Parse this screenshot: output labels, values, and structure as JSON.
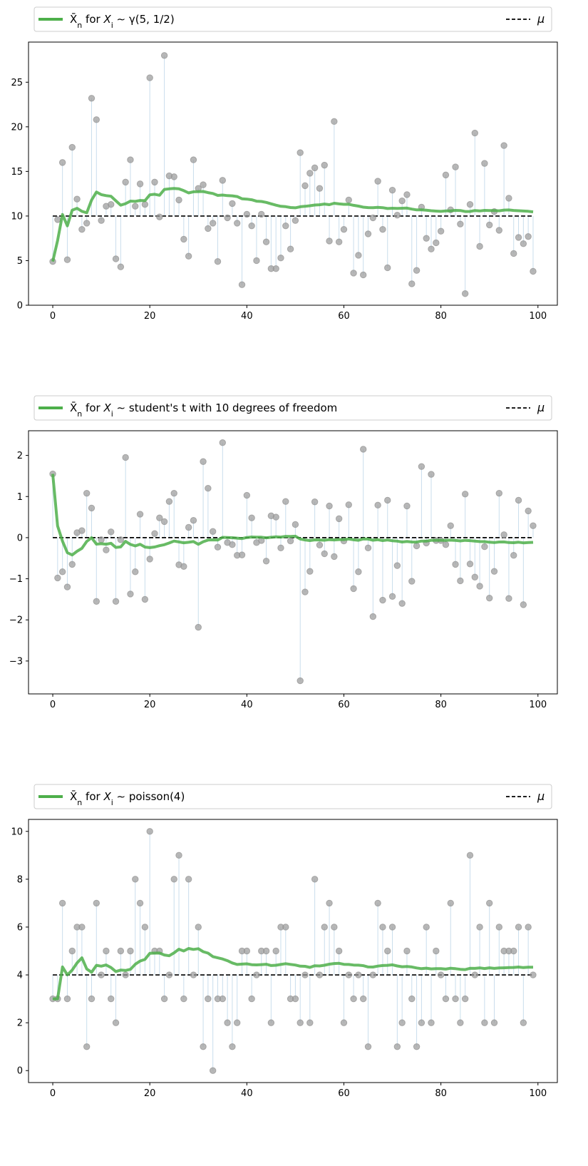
{
  "figure": {
    "legend_mu_label": "μ",
    "legend_prefix": "X̄",
    "legend_sub_n": "n",
    "legend_middle": " for ",
    "legend_xi": "X",
    "legend_sub_i": "i",
    "legend_tilde": " ∼ ",
    "colors": {
      "running_mean": "#4daf4a",
      "samples": "#999999",
      "stems": "#a6c8e0",
      "mu_line": "#000000"
    }
  },
  "chart_data": [
    {
      "type": "scatter",
      "distribution_label": "γ(5, 1/2)",
      "mu": 10,
      "xlim": [
        -5,
        104
      ],
      "ylim": [
        0,
        29.5
      ],
      "xticks": [
        0,
        20,
        40,
        60,
        80,
        100
      ],
      "yticks": [
        0,
        5,
        10,
        15,
        20,
        25
      ],
      "legend": {
        "series": "running mean",
        "reference": "μ",
        "placement": "top"
      },
      "samples": [
        4.9,
        9.6,
        16.0,
        5.1,
        17.7,
        11.9,
        8.5,
        9.2,
        23.2,
        20.8,
        9.5,
        11.1,
        11.3,
        5.2,
        4.3,
        13.8,
        16.3,
        11.1,
        13.6,
        11.3,
        25.5,
        13.8,
        9.9,
        28.0,
        14.5,
        14.4,
        11.8,
        7.4,
        5.5,
        16.3,
        13.1,
        13.5,
        8.6,
        9.2,
        4.9,
        14.0,
        9.8,
        11.4,
        9.2,
        2.3,
        10.2,
        8.9,
        5.0,
        10.2,
        7.1,
        4.1,
        4.1,
        5.3,
        8.9,
        6.3,
        9.5,
        17.1,
        13.4,
        14.8,
        15.4,
        13.1,
        15.7,
        7.2,
        20.6,
        7.1,
        8.5,
        11.8,
        3.6,
        5.6,
        3.4,
        8.0,
        9.8,
        13.9,
        8.5,
        4.2,
        12.9,
        10.1,
        11.7,
        12.4,
        2.4,
        3.9,
        11.0,
        7.5,
        6.3,
        7.0,
        8.3,
        14.6,
        10.7,
        15.5,
        9.1,
        1.3,
        11.3,
        19.3,
        6.6,
        15.9,
        9.0,
        10.5,
        8.4,
        17.9,
        12.0,
        5.8,
        7.6,
        6.9,
        7.7,
        3.8
      ]
    },
    {
      "type": "scatter",
      "distribution_label": "student's t with 10 degrees of freedom",
      "mu": 0,
      "xlim": [
        -5,
        104
      ],
      "ylim": [
        -3.8,
        2.6
      ],
      "xticks": [
        0,
        20,
        40,
        60,
        80,
        100
      ],
      "yticks": [
        -3,
        -2,
        -1,
        0,
        1,
        2
      ],
      "legend": {
        "series": "running mean",
        "reference": "μ",
        "placement": "top"
      },
      "samples": [
        1.55,
        -0.98,
        -0.83,
        -1.2,
        -0.65,
        0.12,
        0.17,
        1.08,
        0.72,
        -1.55,
        -0.05,
        -0.3,
        0.14,
        -1.55,
        -0.05,
        1.95,
        -1.37,
        -0.83,
        0.57,
        -1.5,
        -0.52,
        0.1,
        0.48,
        0.39,
        0.88,
        1.08,
        -0.66,
        -0.7,
        0.25,
        0.42,
        -2.18,
        1.85,
        1.2,
        0.15,
        -0.23,
        2.31,
        -0.12,
        -0.17,
        -0.43,
        -0.42,
        1.03,
        0.48,
        -0.12,
        -0.07,
        -0.57,
        0.53,
        0.5,
        -0.25,
        0.88,
        -0.08,
        0.32,
        -3.48,
        -1.32,
        -0.82,
        0.87,
        -0.18,
        -0.39,
        0.77,
        -0.46,
        0.46,
        -0.08,
        0.8,
        -1.24,
        -0.83,
        2.15,
        -0.25,
        -1.92,
        0.79,
        -1.52,
        0.91,
        -1.43,
        -0.68,
        -1.6,
        0.77,
        -1.06,
        -0.2,
        1.73,
        -0.13,
        1.54,
        -0.07,
        -0.07,
        -0.17,
        0.29,
        -0.65,
        -1.05,
        1.06,
        -0.64,
        -0.96,
        -1.18,
        -0.22,
        -1.47,
        -0.82,
        1.08,
        0.07,
        -1.48,
        -0.43,
        0.91,
        -1.63,
        0.65,
        0.29
      ]
    },
    {
      "type": "scatter",
      "distribution_label": "poisson(4)",
      "mu": 4,
      "xlim": [
        -5,
        104
      ],
      "ylim": [
        -0.5,
        10.5
      ],
      "xticks": [
        0,
        20,
        40,
        60,
        80,
        100
      ],
      "yticks": [
        0,
        2,
        4,
        6,
        8,
        10
      ],
      "legend": {
        "series": "running mean",
        "reference": "μ",
        "placement": "top"
      },
      "samples": [
        3,
        3,
        7,
        3,
        5,
        6,
        6,
        1,
        3,
        7,
        4,
        5,
        3,
        2,
        5,
        4,
        5,
        8,
        7,
        6,
        10,
        5,
        5,
        3,
        4,
        8,
        9,
        3,
        8,
        4,
        6,
        1,
        3,
        0,
        3,
        3,
        2,
        1,
        2,
        5,
        5,
        3,
        4,
        5,
        5,
        2,
        5,
        6,
        6,
        3,
        3,
        2,
        4,
        2,
        8,
        4,
        6,
        7,
        6,
        5,
        2,
        4,
        3,
        4,
        3,
        1,
        4,
        7,
        6,
        5,
        6,
        1,
        2,
        5,
        3,
        1,
        2,
        6,
        2,
        5,
        4,
        3,
        7,
        3,
        2,
        3,
        9,
        4,
        6,
        2,
        7,
        2,
        6,
        5,
        5,
        5,
        6,
        2,
        6,
        4
      ]
    }
  ]
}
